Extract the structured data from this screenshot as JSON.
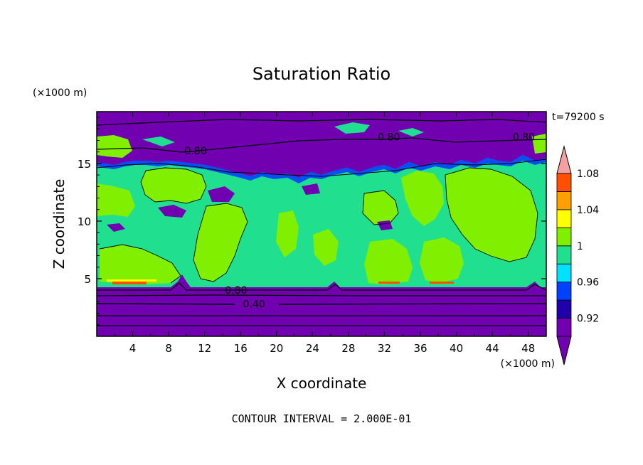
{
  "chart_data": {
    "type": "heatmap",
    "title": "Saturation Ratio",
    "xlabel": "X coordinate",
    "ylabel": "Z coordinate",
    "x_unit_label": "(×1000 m)",
    "y_unit_label": "(×1000 m)",
    "time_label": "t=79200 s",
    "footer": "CONTOUR INTERVAL = 2.000E-01",
    "xlim": [
      0,
      50
    ],
    "ylim": [
      0,
      19.5
    ],
    "x_ticks": [
      4,
      8,
      12,
      16,
      20,
      24,
      28,
      32,
      36,
      40,
      44,
      48
    ],
    "x_tick_labels": [
      "4",
      "8",
      "12",
      "16",
      "20",
      "24",
      "28",
      "32",
      "36",
      "40",
      "44",
      "48"
    ],
    "y_ticks": [
      5,
      10,
      15
    ],
    "y_tick_labels": [
      "5",
      "10",
      "15"
    ],
    "contour_labels": [
      {
        "text": "0.80",
        "x": 15.5,
        "y": 4.0
      },
      {
        "text": "0.40",
        "x": 17.5,
        "y": 2.8
      },
      {
        "text": "0.80",
        "x": 32.5,
        "y": 17.3
      },
      {
        "text": "0.80",
        "x": 11.0,
        "y": 16.1
      },
      {
        "text": "0.80",
        "x": 47.5,
        "y": 17.3
      }
    ],
    "colorbar": {
      "levels": [
        0.92,
        0.96,
        1.0,
        1.04,
        1.08
      ],
      "level_labels": [
        "0.92",
        "0.96",
        "1",
        "1.04",
        "1.08"
      ],
      "band_colors": [
        "#7000b0",
        "#2000a8",
        "#0040ff",
        "#00e0ff",
        "#20e090",
        "#80f000",
        "#ffff00",
        "#ffa000",
        "#ff5000",
        "#ff1818",
        "#f4a0a0"
      ]
    },
    "regions": [
      {
        "level": "lt_0.92",
        "color": "#7000b0",
        "x": [
          0,
          50
        ],
        "y": [
          0,
          4.5
        ]
      },
      {
        "level": "lt_0.92",
        "color": "#7000b0",
        "x": [
          0,
          50
        ],
        "y": [
          16.5,
          19.5
        ]
      },
      {
        "level": "0.98-1.0",
        "color": "#20e090",
        "x": [
          0,
          50
        ],
        "y": [
          4.5,
          15.5
        ]
      }
    ]
  }
}
